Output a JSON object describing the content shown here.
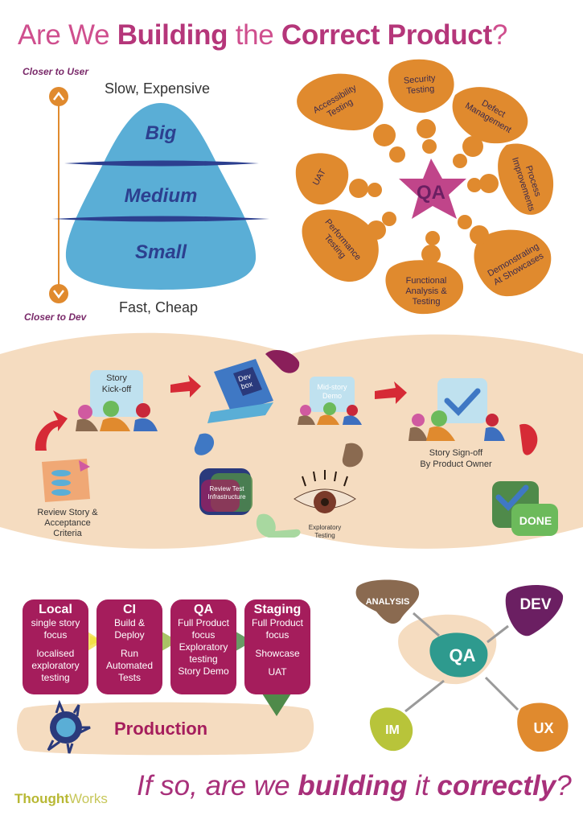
{
  "title": {
    "pre": "Are We ",
    "b1": "Building",
    "mid": " the ",
    "b2": "Correct Product",
    "post": "?"
  },
  "pyramid": {
    "closer_user": "Closer to User",
    "closer_dev": "Closer to Dev",
    "top_label": "Slow, Expensive",
    "bottom_label": "Fast, Cheap",
    "levels": [
      "Big",
      "Medium",
      "Small"
    ]
  },
  "qa_flower": {
    "center": "QA",
    "petals": [
      {
        "lines": [
          "Accessibility",
          "Testing"
        ]
      },
      {
        "lines": [
          "Security",
          "Testing"
        ]
      },
      {
        "lines": [
          "Defect",
          "Management"
        ]
      },
      {
        "lines": [
          "Process",
          "Improvements"
        ]
      },
      {
        "lines": [
          "Demonstrating",
          "At Showcases"
        ]
      },
      {
        "lines": [
          "Functional",
          "Analysis &",
          "Testing"
        ]
      },
      {
        "lines": [
          "Performance",
          "Testing"
        ]
      },
      {
        "lines": [
          "UAT"
        ]
      }
    ]
  },
  "story": {
    "kickoff": [
      "Story",
      "Kick-off"
    ],
    "dev_box": [
      "Dev",
      "box"
    ],
    "mid_story": [
      "Mid-story",
      "Demo"
    ],
    "signoff": [
      "Story Sign-off",
      "By Product Owner"
    ],
    "review_story": [
      "Review Story &",
      "Acceptance",
      "Criteria"
    ],
    "review_test": [
      "Review Test",
      "Infrastructure"
    ],
    "exploratory": [
      "Exploratory",
      "Testing"
    ],
    "done": "DONE"
  },
  "pipeline": {
    "stages": [
      {
        "name": "Local",
        "lines": [
          "single story",
          "focus",
          "",
          "localised",
          "exploratory",
          "testing"
        ]
      },
      {
        "name": "CI",
        "lines": [
          "Build &",
          "Deploy",
          "",
          "Run",
          "Automated",
          "Tests"
        ]
      },
      {
        "name": "QA",
        "lines": [
          "Full Product",
          "focus",
          "Exploratory",
          "testing",
          "Story Demo"
        ]
      },
      {
        "name": "Staging",
        "lines": [
          "Full Product",
          "focus",
          "",
          "Showcase",
          "",
          "UAT"
        ]
      }
    ],
    "production": "Production"
  },
  "roles": {
    "center": "QA",
    "analysis": "ANALYSIS",
    "dev": "DEV",
    "im": "IM",
    "ux": "UX"
  },
  "footer": {
    "pre": "If so, are we ",
    "b1": "building",
    "mid": " it ",
    "b2": "correctly",
    "post": "?"
  },
  "logo": {
    "a": "Thought",
    "b": "Works"
  },
  "colors": {
    "magenta": "#b5367a",
    "orange": "#e08a2e",
    "blue": "#5aaed6",
    "beige": "#f5dcc0",
    "crimson": "#a51d5c",
    "purple": "#6b1f62"
  }
}
